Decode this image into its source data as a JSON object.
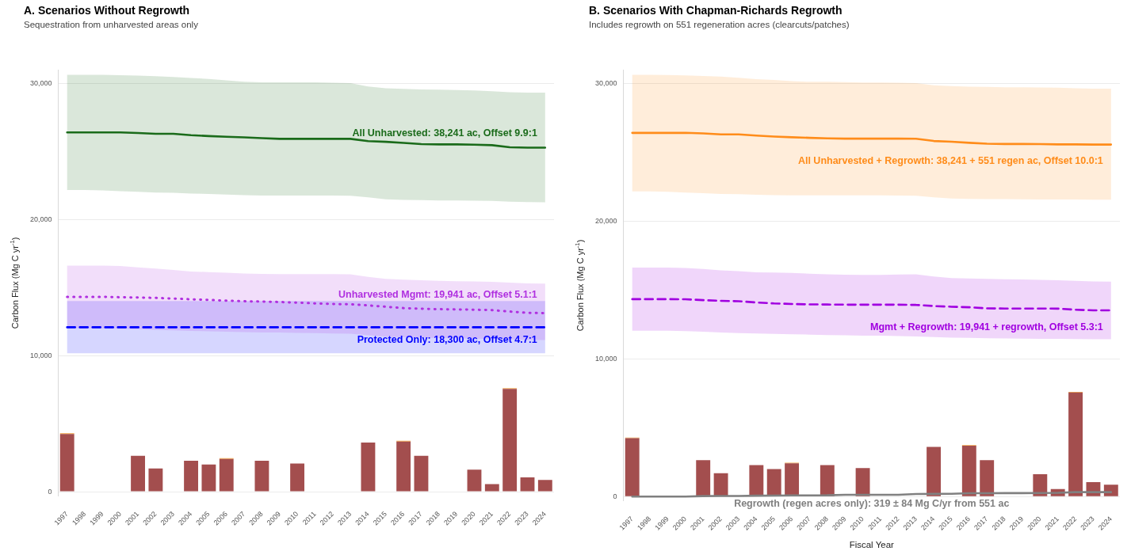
{
  "chart_data": [
    {
      "type": "line",
      "title": "A. Scenarios Without Regrowth",
      "subtitle": "Sequestration from unharvested areas only",
      "ylabel": "Carbon Flux (Mg C yr$^{-1}$)",
      "categories": [
        "1997",
        "1998",
        "1999",
        "2000",
        "2001",
        "2002",
        "2003",
        "2004",
        "2005",
        "2006",
        "2007",
        "2008",
        "2009",
        "2010",
        "2011",
        "2012",
        "2013",
        "2014",
        "2015",
        "2016",
        "2017",
        "2018",
        "2019",
        "2020",
        "2021",
        "2022",
        "2023",
        "2024"
      ],
      "stacked": true,
      "ylim": [
        -300,
        31000
      ],
      "yticks": [
        0,
        {
          "value": 10000,
          "label": "10,000"
        },
        {
          "value": 20000,
          "label": "20,000"
        },
        {
          "value": 30000,
          "label": "30,000"
        }
      ],
      "grid": "y",
      "legend": false,
      "marker": "none",
      "series": [
        {
          "type": "bar",
          "color": "#a34e4e",
          "values": [
            4240,
            null,
            null,
            null,
            2640,
            1700,
            null,
            2280,
            2000,
            2410,
            null,
            2280,
            null,
            2070,
            null,
            null,
            null,
            3610,
            null,
            3690,
            2640,
            null,
            null,
            1620,
            550,
            7560,
            1050,
            860
          ]
        },
        {
          "type": "bar",
          "color": "#f4a340",
          "values": [
            50,
            null,
            null,
            null,
            null,
            null,
            null,
            null,
            null,
            50,
            null,
            null,
            null,
            null,
            null,
            null,
            null,
            null,
            null,
            50,
            null,
            null,
            null,
            null,
            null,
            50,
            null,
            null
          ]
        },
        {
          "color": "#1a6b1a",
          "line_style": "solid",
          "values": [
            26420,
            26420,
            26420,
            26420,
            26380,
            26320,
            26320,
            26220,
            26150,
            26100,
            26060,
            26000,
            25950,
            25950,
            25950,
            25950,
            25950,
            25780,
            25730,
            25650,
            25560,
            25540,
            25540,
            25520,
            25480,
            25330,
            25300,
            25300
          ],
          "upper": [
            30650,
            30650,
            30650,
            30630,
            30600,
            30560,
            30500,
            30420,
            30350,
            30250,
            30150,
            30100,
            30100,
            30100,
            30100,
            30080,
            30050,
            29800,
            29660,
            29620,
            29580,
            29560,
            29540,
            29500,
            29450,
            29380,
            29350,
            29350
          ],
          "lower": [
            22190,
            22180,
            22150,
            22100,
            22050,
            22000,
            21980,
            21930,
            21900,
            21850,
            21800,
            21780,
            21780,
            21780,
            21780,
            21780,
            21760,
            21650,
            21500,
            21460,
            21450,
            21420,
            21410,
            21400,
            21380,
            21330,
            21300,
            21280
          ]
        },
        {
          "color": "#0000ff",
          "line_style": "dashed",
          "values": [
            12090,
            12090,
            12090,
            12090,
            12090,
            12090,
            12090,
            12090,
            12090,
            12090,
            12090,
            12090,
            12090,
            12090,
            12090,
            12090,
            12090,
            12090,
            12090,
            12090,
            12090,
            12090,
            12090,
            12090,
            12090,
            12090,
            12090,
            12090
          ],
          "upper": [
            14020,
            14020,
            14020,
            14020,
            14020,
            14020,
            14020,
            14020,
            14020,
            14020,
            14020,
            14020,
            14020,
            14020,
            14020,
            14020,
            14020,
            14020,
            14020,
            14020,
            14020,
            14020,
            14020,
            14020,
            14020,
            14020,
            14020,
            14020
          ],
          "lower": [
            10180,
            10180,
            10180,
            10180,
            10180,
            10180,
            10180,
            10180,
            10180,
            10180,
            10180,
            10180,
            10180,
            10180,
            10180,
            10180,
            10180,
            10180,
            10180,
            10180,
            10180,
            10180,
            10180,
            10180,
            10180,
            10180,
            10180,
            10180
          ]
        },
        {
          "color": "#b030e0",
          "line_style": "dotted",
          "values": [
            14330,
            14330,
            14330,
            14300,
            14280,
            14250,
            14200,
            14150,
            14100,
            14050,
            14000,
            13980,
            13950,
            13900,
            13850,
            13800,
            13780,
            13700,
            13600,
            13500,
            13450,
            13420,
            13400,
            13380,
            13350,
            13250,
            13150,
            13130
          ],
          "upper": [
            16630,
            16630,
            16630,
            16600,
            16500,
            16400,
            16300,
            16190,
            16150,
            16100,
            16050,
            16020,
            16000,
            16000,
            16000,
            16000,
            15980,
            15800,
            15650,
            15590,
            15550,
            15500,
            15480,
            15460,
            15430,
            15380,
            15320,
            15300
          ],
          "lower": [
            12010,
            12010,
            12000,
            11980,
            11950,
            11900,
            11860,
            11820,
            11800,
            11770,
            11740,
            11710,
            11700,
            11680,
            11660,
            11640,
            11620,
            11500,
            11400,
            11360,
            11330,
            11300,
            11280,
            11250,
            11220,
            11200,
            11170,
            11150
          ]
        }
      ],
      "annotations": [
        {
          "text": "All Unharvested: 38,241 ac, Offset 9.9:1",
          "x": "2024",
          "y": 26320
        },
        {
          "text": "Unharvested Mgmt: 19,941 ac, Offset 5.1:1",
          "x": "2024",
          "y": 14490
        },
        {
          "text": "Protected Only: 18,300 ac, Offset 4.7:1",
          "x": "2024",
          "y": 11170
        }
      ]
    },
    {
      "type": "line",
      "title": "B. Scenarios With Chapman-Richards Regrowth",
      "subtitle": "Includes regrowth on 551 regeneration acres (clearcuts/patches)",
      "ylabel": "Carbon Flux (Mg C yr$^{-1}$)",
      "xlabel": "Fiscal Year",
      "categories": [
        "1997",
        "1998",
        "1999",
        "2000",
        "2001",
        "2002",
        "2003",
        "2004",
        "2005",
        "2006",
        "2007",
        "2008",
        "2009",
        "2010",
        "2011",
        "2012",
        "2013",
        "2014",
        "2015",
        "2016",
        "2017",
        "2018",
        "2019",
        "2020",
        "2021",
        "2022",
        "2023",
        "2024"
      ],
      "stacked": true,
      "ylim": [
        -300,
        31000
      ],
      "yticks": [
        0,
        {
          "value": 10000,
          "label": "10,000"
        },
        {
          "value": 20000,
          "label": "20,000"
        },
        {
          "value": 30000,
          "label": "30,000"
        }
      ],
      "grid": "y",
      "legend": false,
      "marker": "none",
      "series": [
        {
          "type": "bar",
          "color": "#a34e4e",
          "values": [
            4240,
            null,
            null,
            null,
            2640,
            1700,
            null,
            2280,
            2000,
            2410,
            null,
            2280,
            null,
            2070,
            null,
            null,
            null,
            3610,
            null,
            3690,
            2640,
            null,
            null,
            1620,
            550,
            7560,
            1050,
            860
          ]
        },
        {
          "type": "bar",
          "color": "#f4a340",
          "values": [
            50,
            null,
            null,
            null,
            null,
            null,
            null,
            null,
            null,
            50,
            null,
            null,
            null,
            null,
            null,
            null,
            null,
            null,
            null,
            50,
            null,
            null,
            null,
            null,
            null,
            50,
            null,
            null
          ]
        },
        {
          "color": "#808080",
          "line_style": "solid",
          "values": [
            0,
            0,
            0,
            0,
            30,
            40,
            40,
            60,
            70,
            80,
            80,
            90,
            130,
            130,
            130,
            130,
            180,
            190,
            200,
            240,
            240,
            250,
            250,
            260,
            270,
            320,
            320,
            320
          ]
        },
        {
          "color": "#ff8c1a",
          "line_style": "solid",
          "values": [
            26440,
            26440,
            26440,
            26440,
            26400,
            26330,
            26330,
            26240,
            26170,
            26120,
            26080,
            26040,
            26020,
            26020,
            26020,
            26020,
            26010,
            25850,
            25800,
            25720,
            25650,
            25630,
            25630,
            25620,
            25600,
            25600,
            25590,
            25590
          ],
          "upper": [
            30660,
            30660,
            30650,
            30620,
            30580,
            30530,
            30440,
            30350,
            30280,
            30200,
            30150,
            30150,
            30130,
            30100,
            30100,
            30080,
            30050,
            29900,
            29840,
            29800,
            29780,
            29760,
            29750,
            29740,
            29720,
            29680,
            29660,
            29660
          ],
          "lower": [
            22190,
            22180,
            22150,
            22100,
            22050,
            22000,
            21980,
            21940,
            21910,
            21900,
            21900,
            21900,
            21900,
            21900,
            21900,
            21890,
            21870,
            21760,
            21660,
            21640,
            21630,
            21620,
            21610,
            21600,
            21600,
            21590,
            21580,
            21580
          ]
        },
        {
          "color": "#a000e0",
          "line_style": "dashed",
          "values": [
            14350,
            14350,
            14350,
            14340,
            14280,
            14230,
            14200,
            14110,
            14040,
            14000,
            13970,
            13960,
            13950,
            13950,
            13950,
            13950,
            13930,
            13850,
            13800,
            13760,
            13680,
            13670,
            13670,
            13670,
            13660,
            13580,
            13540,
            13540
          ],
          "upper": [
            16650,
            16650,
            16650,
            16620,
            16550,
            16450,
            16380,
            16300,
            16280,
            16250,
            16200,
            16150,
            16130,
            16120,
            16120,
            16140,
            16150,
            16000,
            15880,
            15860,
            15830,
            15800,
            15780,
            15750,
            15720,
            15680,
            15640,
            15620
          ],
          "lower": [
            12060,
            12060,
            12050,
            12020,
            11980,
            11920,
            11880,
            11850,
            11820,
            11800,
            11770,
            11740,
            11720,
            11700,
            11690,
            11660,
            11640,
            11600,
            11550,
            11530,
            11510,
            11490,
            11480,
            11470,
            11460,
            11450,
            11440,
            11430
          ]
        }
      ],
      "annotations": [
        {
          "text": "All Unharvested + Regrowth: 38,241 + 551 regen ac, Offset 10.0:1",
          "x": "2024",
          "y": 24410
        },
        {
          "text": "Mgmt + Regrowth: 19,941 + regrowth, Offset 5.3:1",
          "x": "2024",
          "y": 12320
        },
        "Regrowth (regen acres only): 319 ± 84 Mg C/yr from 551 ac"
      ]
    }
  ]
}
